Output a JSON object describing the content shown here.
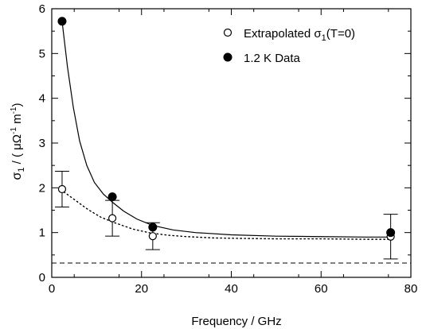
{
  "chart_data": {
    "type": "scatter",
    "xlabel": "Frequency / GHz",
    "ylabel": {
      "prefix": "σ",
      "sub": "1",
      "mid": " / ( μΩ",
      "sup1": "-1",
      "mid2": " m",
      "sup2": "-1",
      "suffix": ")"
    },
    "xlim": [
      0,
      80
    ],
    "ylim": [
      0,
      6
    ],
    "xticks": [
      "0",
      "20",
      "40",
      "60",
      "80"
    ],
    "yticks": [
      "0",
      "1",
      "2",
      "3",
      "4",
      "5",
      "6"
    ],
    "grid": false,
    "legend_position": "top-right",
    "series": [
      {
        "name": {
          "main": "Extrapolated σ",
          "sub": "1",
          "tail": "(T=0)"
        },
        "marker": "open-circle",
        "x": [
          2.3,
          13.5,
          22.5,
          75.5
        ],
        "y": [
          1.97,
          1.32,
          0.92,
          0.91
        ],
        "err": [
          0.4,
          0.4,
          0.3,
          0.5
        ],
        "fit": {
          "style": "dotted",
          "x": [
            2,
            5,
            8,
            11,
            14,
            18,
            22,
            26,
            30,
            36,
            42,
            50,
            60,
            70,
            76
          ],
          "y": [
            1.96,
            1.74,
            1.52,
            1.34,
            1.22,
            1.08,
            0.99,
            0.94,
            0.91,
            0.88,
            0.87,
            0.86,
            0.86,
            0.85,
            0.85
          ]
        }
      },
      {
        "name": {
          "main": "1.2 K Data",
          "sub": "",
          "tail": ""
        },
        "marker": "filled-circle",
        "x": [
          2.3,
          13.5,
          22.5,
          75.5
        ],
        "y": [
          5.72,
          1.8,
          1.12,
          1.0
        ],
        "err": [],
        "fit": {
          "style": "solid",
          "x": [
            2.3,
            3.5,
            4.8,
            6.2,
            7.8,
            9.5,
            11.5,
            13.5,
            16,
            19,
            22.5,
            27,
            32,
            40,
            50,
            60,
            70,
            76
          ],
          "y": [
            5.72,
            4.7,
            3.8,
            3.05,
            2.5,
            2.12,
            1.86,
            1.68,
            1.48,
            1.3,
            1.16,
            1.06,
            1.0,
            0.95,
            0.92,
            0.91,
            0.9,
            0.9
          ]
        }
      }
    ],
    "reference_line": {
      "y": 0.32,
      "style": "dashed"
    }
  }
}
